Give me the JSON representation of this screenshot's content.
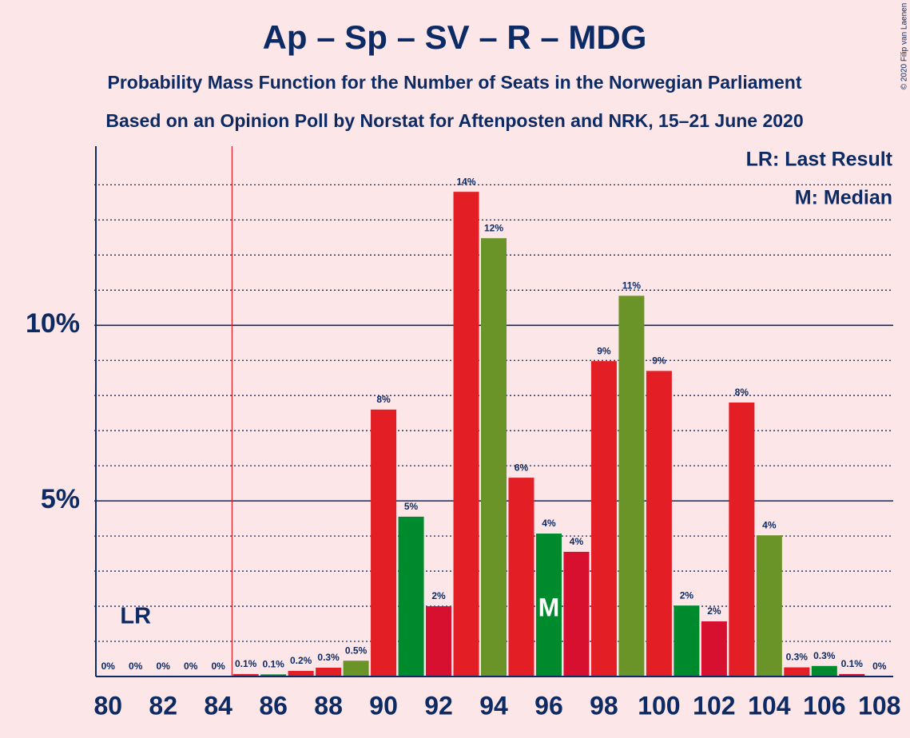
{
  "chart_data": {
    "type": "bar",
    "title": "Ap – Sp – SV – R – MDG",
    "subtitle": "Probability Mass Function for the Number of Seats in the Norwegian Parliament",
    "subtitle2": "Based on an Opinion Poll by Norstat for Aftenposten and NRK, 15–21 June 2020",
    "copyright": "© 2020 Filip van Laenen",
    "x": [
      80,
      81,
      82,
      83,
      84,
      85,
      86,
      87,
      88,
      89,
      90,
      91,
      92,
      93,
      94,
      95,
      96,
      97,
      98,
      99,
      100,
      101,
      102,
      103,
      104,
      105,
      106,
      107,
      108
    ],
    "values": [
      0,
      0,
      0,
      0,
      0,
      0.07,
      0.06,
      0.16,
      0.25,
      0.45,
      7.6,
      4.55,
      2.0,
      13.8,
      12.48,
      5.66,
      4.07,
      3.55,
      8.98,
      10.84,
      8.7,
      2.02,
      1.57,
      7.8,
      4.02,
      0.26,
      0.3,
      0.07,
      0
    ],
    "value_labels": [
      "0%",
      "0%",
      "0%",
      "0%",
      "0%",
      "0.1%",
      "0.1%",
      "0.2%",
      "0.3%",
      "0.5%",
      "8%",
      "5%",
      "2%",
      "14%",
      "12%",
      "6%",
      "4%",
      "4%",
      "9%",
      "11%",
      "9%",
      "2%",
      "2%",
      "8%",
      "4%",
      "0.3%",
      "0.3%",
      "0.1%",
      "0%"
    ],
    "colors": [
      "#e31e24",
      "#e31e24",
      "#e31e24",
      "#e31e24",
      "#e31e24",
      "#e31e24",
      "#008a2e",
      "#e31e24",
      "#e31e24",
      "#6b9428",
      "#e31e24",
      "#008a2e",
      "#d7102f",
      "#e31e24",
      "#6b9428",
      "#e31e24",
      "#008a2e",
      "#d7102f",
      "#e31e24",
      "#6b9428",
      "#e31e24",
      "#008a2e",
      "#d7102f",
      "#e31e24",
      "#6b9428",
      "#e31e24",
      "#008a2e",
      "#d7102f",
      "#e31e24"
    ],
    "xlim": [
      79.5,
      108.5
    ],
    "xticks": [
      80,
      82,
      84,
      86,
      88,
      90,
      92,
      94,
      96,
      98,
      100,
      102,
      104,
      106,
      108
    ],
    "ylim": [
      0,
      15.1
    ],
    "yticks": [
      {
        "value": 5,
        "label": "5%"
      },
      {
        "value": 10,
        "label": "10%"
      }
    ],
    "minor_grid": [
      1,
      2,
      3,
      4,
      6,
      7,
      8,
      9,
      11,
      12,
      13,
      14
    ],
    "majority": 85,
    "last_result": {
      "value": 81,
      "label": "LR"
    },
    "median": {
      "value": 96,
      "label": "M"
    },
    "legend": [
      "LR: Last Result",
      "M: Median"
    ]
  }
}
